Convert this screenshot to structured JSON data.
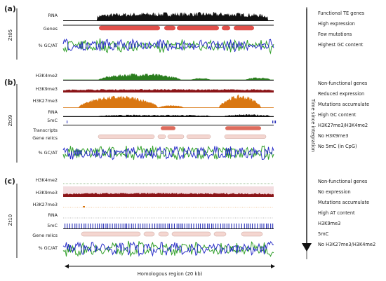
{
  "panels": [
    {
      "letter": "(a)",
      "strain": "Zt05",
      "tracks": [
        "RNA",
        "Genes",
        "% GC/AT"
      ],
      "traits": [
        "Functional TE genes",
        "High expression",
        "Few mutations",
        "Highest GC content"
      ]
    },
    {
      "letter": "(b)",
      "strain": "Zt09",
      "tracks": [
        "H3K4me2",
        "H3K9me3",
        "H3K27me3",
        "RNA",
        "5mC",
        "Transcripts",
        "Gene relics",
        "% GC/AT"
      ],
      "traits": [
        "Non-functional genes",
        "Reduced expression",
        "Mutations accumulate",
        "High GC content",
        "H3K27me3/H3K4me2",
        "No H3K9me3",
        "No 5mC (in CpG)"
      ]
    },
    {
      "letter": "(c)",
      "strain": "Zt10",
      "tracks": [
        "H3K4me2",
        "H3K9me3",
        "H3K27me3",
        "RNA",
        "5mC",
        "Gene relics",
        "% GC/AT"
      ],
      "traits": [
        "Non-functional genes",
        "No expression",
        "Mutations accumulate",
        "High AT content",
        "H3K9me3",
        "5mC",
        "No H3K27me3/H3K4me2"
      ]
    }
  ],
  "time_axis_label": "Time since integration",
  "region_label": "Homologous region (20 kb)",
  "colors": {
    "rna": "#111111",
    "genes": "#e0504a",
    "transcripts": "#de6b5c",
    "relics": "#f4d6d0",
    "h3k4me2": "#2a7d1e",
    "h3k9me3": "#8b1518",
    "h3k27me3": "#d97712",
    "methyl": "#2830b8",
    "gc": "#2a2fc8",
    "at": "#33a02c"
  }
}
